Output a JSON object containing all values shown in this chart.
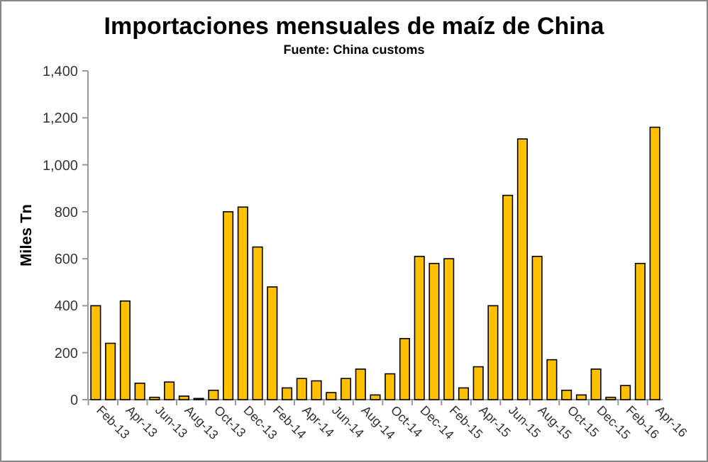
{
  "chart_data": {
    "type": "bar",
    "title": "Importaciones mensuales de maíz de China",
    "subtitle": "Fuente: China customs",
    "ylabel": "Miles Tn",
    "categories": [
      "Feb-13",
      null,
      "Apr-13",
      null,
      "Jun-13",
      null,
      "Aug-13",
      null,
      "Oct-13",
      null,
      "Dec-13",
      null,
      "Feb-14",
      null,
      "Apr-14",
      null,
      "Jun-14",
      null,
      "Aug-14",
      null,
      "Oct-14",
      null,
      "Dec-14",
      null,
      "Feb-15",
      null,
      "Apr-15",
      null,
      "Jun-15",
      null,
      "Aug-15",
      null,
      "Oct-15",
      null,
      "Dec-15",
      null,
      "Feb-16",
      null,
      "Apr-16"
    ],
    "values": [
      400,
      240,
      420,
      70,
      10,
      75,
      15,
      5,
      40,
      800,
      820,
      650,
      480,
      50,
      90,
      80,
      30,
      90,
      130,
      20,
      110,
      260,
      610,
      580,
      600,
      50,
      140,
      400,
      870,
      1110,
      610,
      170,
      40,
      20,
      130,
      10,
      60,
      580,
      1160
    ],
    "color": "#ffc000",
    "ylim": [
      0,
      1400
    ],
    "yticks": [
      {
        "value": 0,
        "label": "0"
      },
      {
        "value": 200,
        "label": "200"
      },
      {
        "value": 400,
        "label": "400"
      },
      {
        "value": 600,
        "label": "600"
      },
      {
        "value": 800,
        "label": "800"
      },
      {
        "value": 1000,
        "label": "1,000"
      },
      {
        "value": 1200,
        "label": "1,200"
      },
      {
        "value": 1400,
        "label": "1,400"
      }
    ],
    "grid": false
  }
}
